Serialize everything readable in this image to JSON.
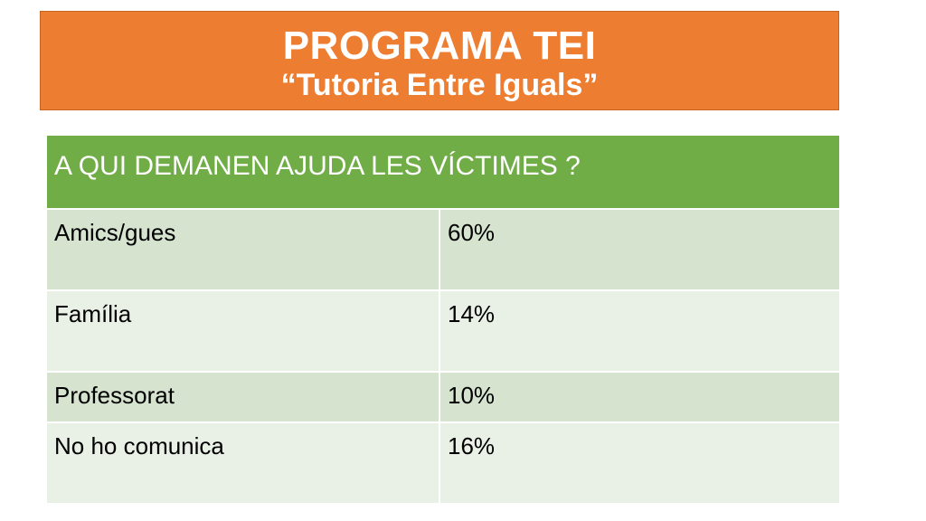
{
  "banner": {
    "title": "PROGRAMA TEI",
    "subtitle": "“Tutoria Entre Iguals”"
  },
  "table": {
    "header": "A QUI DEMANEN AJUDA LES VÍCTIMES ?",
    "rows": [
      {
        "label": "Amics/gues",
        "value": "60%"
      },
      {
        "label": "Família",
        "value": "14%"
      },
      {
        "label": "Professorat",
        "value": "10%"
      },
      {
        "label": "No ho comunica",
        "value": "16%"
      }
    ]
  },
  "colors": {
    "banner": "#ed7d31",
    "header": "#70ad47",
    "row_dark": "#d5e3cf",
    "row_light": "#e9f0e6"
  }
}
